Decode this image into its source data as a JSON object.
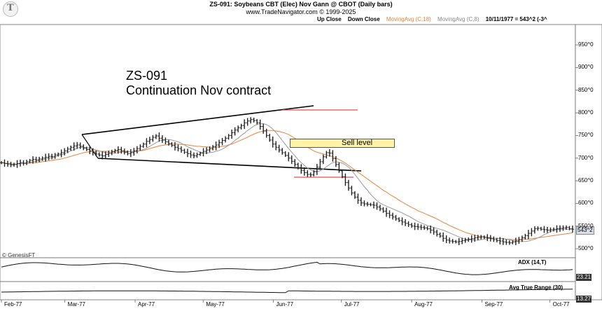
{
  "header": {
    "title": "ZS-091:  Soybeans CBT (Elec) Nov Gann @ CBOT  (Daily bars)",
    "subtitle": "www.TradeNavigator.com © 1999-2025"
  },
  "legend": {
    "up": "Up Close",
    "down": "Down Close",
    "ma18": "MovingAvg (C,18)",
    "ma8": "MovingAvg (C,8)",
    "date_readout": "10/11/1977 = 543^2 (-3^"
  },
  "annotation": {
    "line1": "ZS-091",
    "line2": "Continuation Nov contract",
    "sell_label": "Sell level"
  },
  "copyright": "© GenesisFT",
  "panels": {
    "adx_name": "ADX (14,T)",
    "adx_last": "23.21",
    "atr_name": "Avg True Range (30)",
    "atr_last": "13.27"
  },
  "price_last": "543^2",
  "colors": {
    "bars": "#222222",
    "ma18": "#e8823a",
    "ma8": "#999999",
    "trendline": "#000000",
    "redline": "#e05050",
    "sellbox": "#fff3a8"
  },
  "chart_data": {
    "type": "ohlc",
    "title": "ZS-091:  Soybeans CBT (Elec) Nov Gann @ CBOT  (Daily bars)",
    "x_tick_labels": [
      "Feb-77",
      "Mar-77",
      "Apr-77",
      "May-77",
      "Jun-77",
      "Jul-77",
      "Aug-77",
      "Sep-77",
      "Oct-77"
    ],
    "y_tick_labels": [
      "500^0",
      "550^0",
      "600^0",
      "650^0",
      "700^0",
      "750^0",
      "800^0",
      "850^0",
      "900^0",
      "950^0"
    ],
    "ylim": [
      480,
      995
    ],
    "start_date": "1977-02-01",
    "end_date": "1977-10-11",
    "closes": [
      690,
      688,
      687,
      685,
      686,
      688,
      690,
      689,
      692,
      695,
      697,
      696,
      698,
      700,
      702,
      704,
      703,
      707,
      709,
      712,
      716,
      720,
      724,
      727,
      729,
      726,
      722,
      719,
      716,
      712,
      709,
      707,
      705,
      708,
      711,
      714,
      717,
      719,
      716,
      713,
      710,
      712,
      716,
      721,
      726,
      731,
      737,
      741,
      746,
      749,
      744,
      740,
      736,
      732,
      728,
      724,
      721,
      717,
      713,
      710,
      707,
      705,
      708,
      711,
      715,
      718,
      721,
      725,
      729,
      734,
      739,
      744,
      750,
      756,
      762,
      767,
      772,
      778,
      782,
      785,
      783,
      778,
      770,
      760,
      750,
      740,
      731,
      724,
      718,
      712,
      706,
      700,
      693,
      686,
      679,
      673,
      668,
      664,
      663,
      670,
      680,
      692,
      703,
      712,
      711,
      699,
      686,
      672,
      659,
      646,
      634,
      623,
      614,
      607,
      601,
      599,
      598,
      597,
      596,
      592,
      588,
      583,
      578,
      574,
      570,
      566,
      562,
      559,
      556,
      553,
      550,
      549,
      548,
      547,
      546,
      544,
      541,
      537,
      532,
      528,
      523,
      519,
      517,
      516,
      515,
      516,
      518,
      519,
      521,
      522,
      524,
      525,
      526,
      525,
      524,
      522,
      520,
      518,
      517,
      515,
      514,
      513,
      515,
      517,
      520,
      524,
      529,
      534,
      539,
      544,
      545,
      543,
      542,
      541,
      542,
      543,
      544,
      545,
      546,
      547,
      544,
      543
    ],
    "ma18": [
      690,
      689,
      688,
      688,
      687,
      687,
      688,
      688,
      688,
      689,
      690,
      690,
      691,
      692,
      693,
      694,
      695,
      696,
      697,
      698,
      700,
      702,
      704,
      706,
      708,
      710,
      712,
      713,
      714,
      715,
      715,
      715,
      715,
      715,
      715,
      715,
      715,
      715,
      715,
      715,
      715,
      714,
      714,
      715,
      716,
      717,
      719,
      721,
      723,
      725,
      727,
      728,
      729,
      730,
      731,
      731,
      731,
      730,
      730,
      729,
      728,
      727,
      726,
      726,
      725,
      725,
      724,
      724,
      724,
      725,
      726,
      727,
      729,
      731,
      734,
      737,
      740,
      743,
      746,
      750,
      753,
      756,
      758,
      760,
      761,
      761,
      761,
      760,
      759,
      757,
      755,
      752,
      748,
      744,
      739,
      734,
      729,
      724,
      720,
      716,
      713,
      711,
      709,
      707,
      705,
      703,
      700,
      697,
      693,
      689,
      684,
      679,
      674,
      669,
      664,
      659,
      654,
      649,
      644,
      639,
      634,
      629,
      625,
      620,
      616,
      612,
      607,
      603,
      599,
      595,
      591,
      588,
      584,
      581,
      578,
      575,
      572,
      569,
      566,
      562,
      558,
      555,
      551,
      548,
      545,
      542,
      539,
      536,
      534,
      532,
      530,
      528,
      527,
      526,
      525,
      524,
      523,
      523,
      522,
      522,
      521,
      521,
      520,
      520,
      520,
      520,
      521,
      521,
      522,
      523,
      524,
      525,
      526,
      527,
      528,
      529,
      530,
      531,
      532,
      533,
      534,
      535
    ],
    "ma8": [
      690,
      689,
      688,
      687,
      686,
      687,
      688,
      688,
      689,
      690,
      692,
      693,
      694,
      696,
      698,
      700,
      701,
      703,
      705,
      707,
      710,
      713,
      716,
      719,
      722,
      724,
      724,
      723,
      722,
      720,
      718,
      716,
      714,
      712,
      712,
      711,
      711,
      712,
      713,
      713,
      714,
      714,
      715,
      716,
      717,
      719,
      722,
      726,
      730,
      734,
      738,
      740,
      741,
      741,
      740,
      738,
      736,
      733,
      729,
      725,
      722,
      719,
      716,
      713,
      712,
      711,
      712,
      713,
      715,
      717,
      720,
      724,
      728,
      733,
      739,
      744,
      750,
      755,
      761,
      766,
      771,
      774,
      776,
      776,
      774,
      770,
      764,
      757,
      748,
      739,
      730,
      721,
      713,
      705,
      697,
      690,
      684,
      678,
      674,
      671,
      670,
      672,
      676,
      681,
      686,
      690,
      692,
      691,
      689,
      685,
      680,
      673,
      664,
      655,
      646,
      637,
      629,
      620,
      613,
      606,
      601,
      597,
      594,
      591,
      588,
      585,
      582,
      579,
      575,
      572,
      568,
      564,
      560,
      557,
      554,
      551,
      549,
      547,
      545,
      543,
      541,
      538,
      535,
      532,
      529,
      526,
      523,
      521,
      520,
      519,
      519,
      519,
      520,
      521,
      522,
      523,
      523,
      523,
      523,
      522,
      521,
      520,
      518,
      517,
      516,
      516,
      516,
      517,
      519,
      521,
      524,
      527,
      531,
      534,
      538,
      540,
      542,
      543,
      543,
      543,
      543,
      543
    ]
  }
}
